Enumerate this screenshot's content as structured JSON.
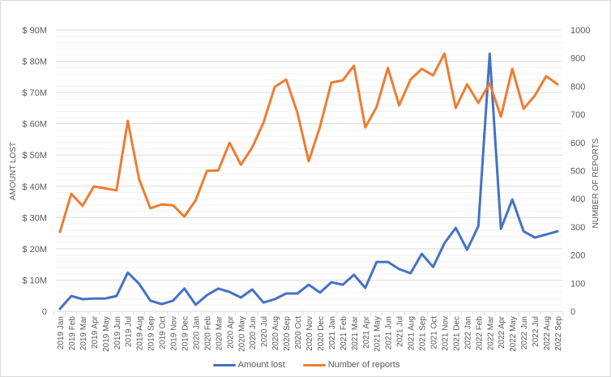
{
  "chart_data": {
    "type": "line",
    "title": "",
    "xlabel": "",
    "ylabel": "AMOUNT LOST",
    "y2label": "NUMBER OF REPORTS",
    "ylim": [
      0,
      90
    ],
    "y2lim": [
      0,
      1000
    ],
    "y_ticks": [
      "0",
      "$ 10M",
      "$ 20M",
      "$ 30M",
      "$ 40M",
      "$ 50M",
      "$ 60M",
      "$ 70M",
      "$ 80M",
      "$ 90M"
    ],
    "y2_ticks": [
      "0",
      "100",
      "200",
      "300",
      "400",
      "500",
      "600",
      "700",
      "800",
      "900",
      "1000"
    ],
    "grid": true,
    "legend_position": "bottom",
    "categories": [
      "2019 Jan",
      "2019 Feb",
      "2019 Mar",
      "2019 Apr",
      "2019 May",
      "2019 Jun",
      "2019 Jul",
      "2019 Aug",
      "2019 Sep",
      "2019 Oct",
      "2019 Nov",
      "2019 Dec",
      "2020 Jan",
      "2020 Feb",
      "2020 Mar",
      "2020 Apr",
      "2020 May",
      "2020 Jun",
      "2020 Jul",
      "2020 Aug",
      "2020 Sep",
      "2020 Oct",
      "2020 Nov",
      "2020 Dec",
      "2021 Jan",
      "2021 Feb",
      "2021 Mar",
      "2021 Apr",
      "2021 May",
      "2021 Jun",
      "2021 Jul",
      "2021 Aug",
      "2021 Sep",
      "2021 Oct",
      "2021 Nov",
      "2021 Dec",
      "2022 Jan",
      "2022 Feb",
      "2022 Mar",
      "2022 Apr",
      "2022 May",
      "2022 Jun",
      "2022 Jul",
      "2022 Aug",
      "2022 Sep"
    ],
    "series": [
      {
        "name": "Amount lost",
        "axis": "left",
        "unit": "$M",
        "color": "#4472C4",
        "values": [
          0.8,
          4.9,
          3.9,
          4.1,
          4.1,
          4.9,
          12.4,
          8.8,
          3.4,
          2.3,
          3.4,
          7.3,
          2.1,
          5.2,
          7.3,
          6.2,
          4.4,
          7.0,
          2.8,
          3.9,
          5.7,
          5.7,
          8.5,
          6.0,
          9.3,
          8.5,
          11.7,
          7.5,
          15.8,
          15.8,
          13.5,
          12.2,
          18.4,
          14.2,
          21.8,
          26.7,
          19.7,
          27.2,
          82.4,
          26.4,
          35.8,
          25.6,
          23.6,
          24.6,
          25.6
        ]
      },
      {
        "name": "Number of reports",
        "axis": "right",
        "unit": "reports",
        "color": "#ED7D31",
        "values": [
          282,
          418,
          375,
          444,
          437,
          430,
          677,
          470,
          366,
          380,
          377,
          337,
          395,
          499,
          501,
          599,
          521,
          582,
          671,
          798,
          824,
          706,
          533,
          657,
          813,
          821,
          873,
          654,
          726,
          865,
          732,
          824,
          862,
          839,
          916,
          723,
          807,
          741,
          810,
          692,
          862,
          720,
          767,
          836,
          807
        ]
      }
    ]
  },
  "legend": {
    "items": [
      {
        "label": "Amount lost",
        "color": "#4472C4"
      },
      {
        "label": "Number of reports",
        "color": "#ED7D31"
      }
    ]
  }
}
